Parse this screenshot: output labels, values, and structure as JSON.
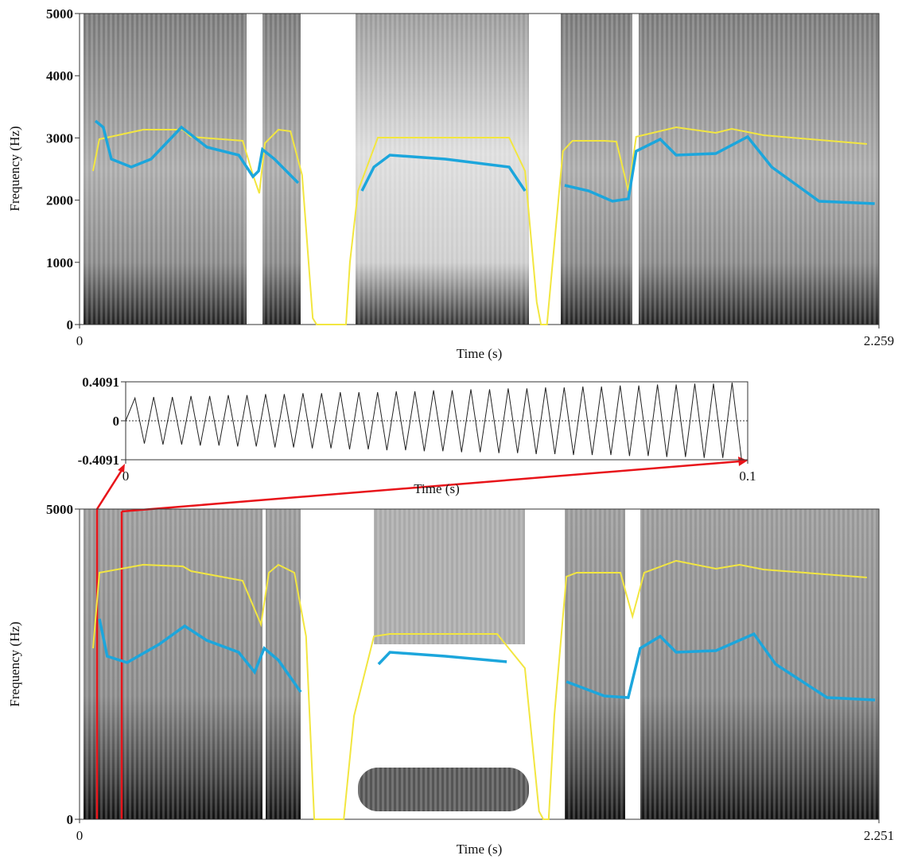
{
  "chart_data": [
    {
      "type": "spectrogram",
      "xlabel": "Time (s)",
      "ylabel": "Frequency (Hz)",
      "xlim": [
        0,
        2.259
      ],
      "xticks": [
        0,
        2.259
      ],
      "ylim": [
        0,
        5000
      ],
      "yticks": [
        0,
        1000,
        2000,
        3000,
        4000,
        5000
      ],
      "series": [
        {
          "color": "#f2e640",
          "x": [
            0.038,
            0.056,
            0.18,
            0.292,
            0.315,
            0.461,
            0.49,
            0.508,
            0.524,
            0.562,
            0.596,
            0.629,
            0.659,
            0.67,
            0.753,
            0.764,
            0.787,
            0.843,
            1.214,
            1.259,
            1.292,
            1.304,
            1.321,
            1.337,
            1.366,
            1.393,
            1.483,
            1.517,
            1.551,
            1.573,
            1.686,
            1.798,
            1.843,
            1.933,
            2.225
          ],
          "values": [
            2468,
            2980,
            3133,
            3133,
            3018,
            2954,
            2404,
            2110,
            2916,
            3133,
            3107,
            2404,
            102,
            0,
            0,
            997,
            2148,
            3005,
            3005,
            2468,
            358,
            0,
            0,
            997,
            2788,
            2954,
            2954,
            2941,
            2148,
            3018,
            3171,
            3082,
            3146,
            3043,
            2903
          ]
        },
        {
          "color": "#1ca6dc",
          "x": [
            0.045,
            0.067,
            0.09,
            0.146,
            0.202,
            0.288,
            0.36,
            0.45,
            0.49,
            0.506,
            0.517,
            0.551,
            0.618,
            0.7,
            0.798,
            0.832,
            0.877,
            1.034,
            1.214,
            1.259,
            1.31,
            1.371,
            1.439,
            1.506,
            1.551,
            1.573,
            1.641,
            1.686,
            1.798,
            1.888,
            1.956,
            2.09,
            2.247
          ],
          "values": [
            3274,
            3171,
            2660,
            2532,
            2660,
            3171,
            2852,
            2724,
            2379,
            2468,
            2813,
            2660,
            2276,
            null,
            2148,
            2532,
            2724,
            2660,
            2532,
            2148,
            null,
            2238,
            2148,
            1982,
            2020,
            2788,
            2980,
            2724,
            2749,
            3018,
            2532,
            1982,
            1944
          ]
        }
      ]
    },
    {
      "type": "line",
      "xlabel": "Time (s)",
      "xlim": [
        0,
        0.1
      ],
      "xticks": [
        0,
        0.1
      ],
      "ylim": [
        -0.4091,
        0.4091
      ],
      "yticks": [
        -0.4091,
        0,
        0.4091
      ],
      "zero_line": true,
      "color": "#222222",
      "x": [
        0,
        0.0015,
        0.003,
        0.0045,
        0.006,
        0.0075,
        0.009,
        0.0105,
        0.012,
        0.0135,
        0.015,
        0.0165,
        0.018,
        0.0195,
        0.021,
        0.0225,
        0.024,
        0.0255,
        0.027,
        0.0285,
        0.03,
        0.0315,
        0.033,
        0.0345,
        0.036,
        0.0375,
        0.039,
        0.0405,
        0.042,
        0.0435,
        0.045,
        0.0465,
        0.048,
        0.0495,
        0.051,
        0.0525,
        0.054,
        0.0555,
        0.057,
        0.0585,
        0.06,
        0.0615,
        0.063,
        0.0645,
        0.066,
        0.0675,
        0.069,
        0.0705,
        0.072,
        0.0735,
        0.075,
        0.0765,
        0.078,
        0.0795,
        0.081,
        0.0825,
        0.084,
        0.0855,
        0.087,
        0.0885,
        0.09,
        0.0915,
        0.093,
        0.0945,
        0.096,
        0.0975,
        0.099
      ],
      "values": [
        0,
        0.24,
        -0.24,
        0.25,
        -0.25,
        0.25,
        -0.25,
        0.26,
        -0.26,
        0.26,
        -0.26,
        0.27,
        -0.27,
        0.27,
        -0.27,
        0.28,
        -0.28,
        0.28,
        -0.28,
        0.29,
        -0.29,
        0.29,
        -0.29,
        0.3,
        -0.3,
        0.3,
        -0.3,
        0.3,
        -0.31,
        0.31,
        -0.31,
        0.31,
        -0.32,
        0.32,
        -0.32,
        0.32,
        -0.33,
        0.33,
        -0.33,
        0.33,
        -0.34,
        0.34,
        -0.34,
        0.34,
        -0.35,
        0.35,
        -0.35,
        0.35,
        -0.36,
        0.36,
        -0.36,
        0.36,
        -0.36,
        0.37,
        -0.37,
        0.37,
        -0.37,
        0.38,
        -0.38,
        0.38,
        -0.38,
        0.39,
        -0.39,
        0.39,
        -0.39,
        0.4,
        -0.4
      ]
    },
    {
      "type": "spectrogram",
      "xlabel": "Time (s)",
      "ylabel": "Frequency (Hz)",
      "xlim": [
        0,
        2.251
      ],
      "xticks": [
        0,
        2.251
      ],
      "ylim": [
        0,
        5000
      ],
      "yticks": [
        0,
        5000
      ],
      "series": [
        {
          "color": "#f2e640",
          "x": [
            0.038,
            0.056,
            0.179,
            0.291,
            0.314,
            0.459,
            0.511,
            0.533,
            0.56,
            0.605,
            0.638,
            0.661,
            0.744,
            0.773,
            0.829,
            0.874,
            1.176,
            1.254,
            1.294,
            1.306,
            1.321,
            1.337,
            1.371,
            1.4,
            1.523,
            1.557,
            1.59,
            1.68,
            1.792,
            1.859,
            1.926,
            2.217
          ],
          "values": [
            2756,
            3974,
            4103,
            4077,
            4000,
            3846,
            3141,
            3974,
            4103,
            3974,
            2949,
            0,
            0,
            1667,
            2949,
            2987,
            2987,
            2436,
            128,
            0,
            0,
            1667,
            3910,
            3974,
            3974,
            3269,
            3974,
            4167,
            4038,
            4103,
            4026,
            3897
          ]
        },
        {
          "color": "#1ca6dc",
          "x": [
            0.056,
            0.078,
            0.134,
            0.224,
            0.296,
            0.358,
            0.448,
            0.493,
            0.52,
            0.56,
            0.623,
            0.73,
            0.842,
            0.874,
            1.03,
            1.203,
            1.29,
            1.371,
            1.478,
            1.545,
            1.579,
            1.635,
            1.68,
            1.792,
            1.899,
            1.96,
            2.105,
            2.24
          ],
          "values": [
            3231,
            2628,
            2526,
            2821,
            3115,
            2885,
            2692,
            2372,
            2756,
            2564,
            2051,
            null,
            2500,
            2692,
            2628,
            2538,
            null,
            2218,
            1987,
            1962,
            2756,
            2949,
            2692,
            2718,
            2987,
            2500,
            1962,
            1923
          ]
        }
      ]
    }
  ]
}
